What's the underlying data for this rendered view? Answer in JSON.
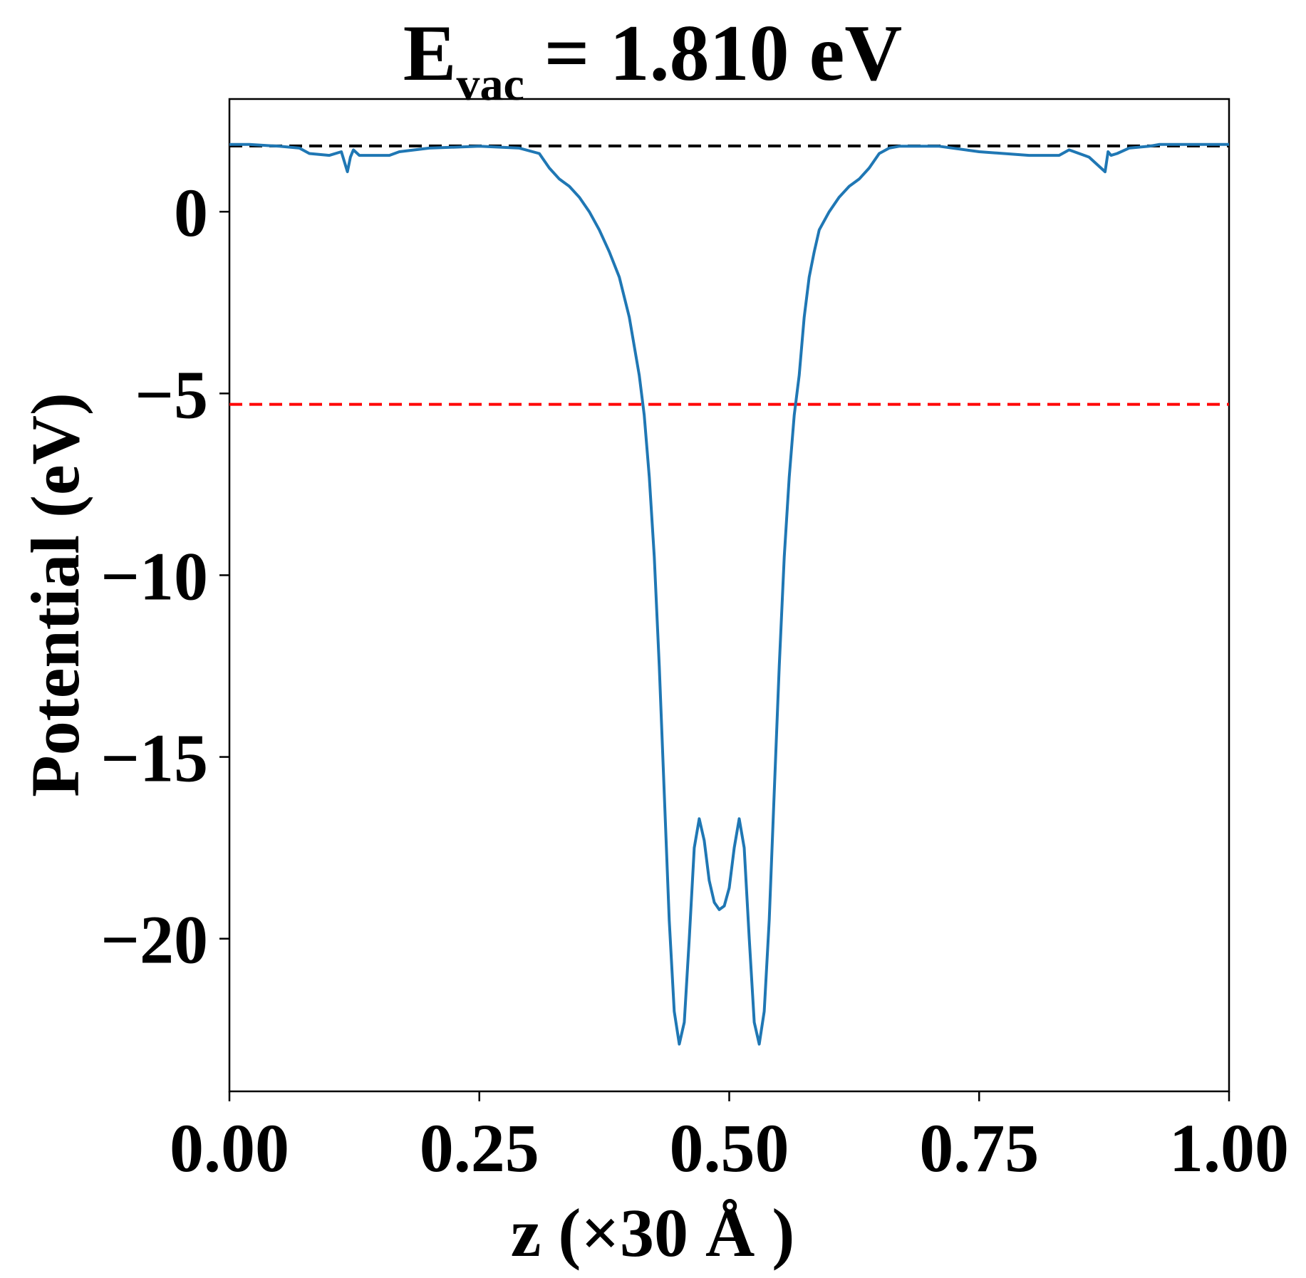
{
  "chart_data": {
    "type": "line",
    "title": {
      "prefix": "E",
      "subscript": "vac",
      "suffix": " = 1.810 eV"
    },
    "xlabel": "z (×30 Å )",
    "ylabel": "Potential (eV)",
    "xlim": [
      0,
      1
    ],
    "ylim": [
      -24.2,
      3.1
    ],
    "xticks": [
      0,
      0.25,
      0.5,
      0.75,
      1.0
    ],
    "xtick_labels": [
      "0.00",
      "0.25",
      "0.50",
      "0.75",
      "1.00"
    ],
    "yticks": [
      0,
      -5,
      -10,
      -15,
      -20
    ],
    "ytick_labels": [
      "0",
      "−5",
      "−10",
      "−15",
      "−20"
    ],
    "grid": false,
    "legend": "none",
    "reference_lines": [
      {
        "kind": "vacuum_level",
        "y": 1.81,
        "color": "#000000",
        "style": "dashed"
      },
      {
        "kind": "reference_level",
        "y": -5.3,
        "color": "#ff0000",
        "style": "dashed"
      }
    ],
    "series": [
      {
        "color": "#1f77b4",
        "x": [
          0.0,
          0.02,
          0.05,
          0.07,
          0.08,
          0.1,
          0.112,
          0.118,
          0.121,
          0.124,
          0.13,
          0.14,
          0.16,
          0.17,
          0.2,
          0.25,
          0.29,
          0.31,
          0.32,
          0.33,
          0.34,
          0.35,
          0.36,
          0.37,
          0.38,
          0.39,
          0.4,
          0.41,
          0.415,
          0.42,
          0.425,
          0.43,
          0.435,
          0.44,
          0.445,
          0.45,
          0.455,
          0.46,
          0.465,
          0.47,
          0.475,
          0.48,
          0.485,
          0.49,
          0.495,
          0.5,
          0.505,
          0.51,
          0.515,
          0.52,
          0.525,
          0.53,
          0.535,
          0.54,
          0.545,
          0.55,
          0.555,
          0.56,
          0.565,
          0.57,
          0.575,
          0.58,
          0.585,
          0.59,
          0.6,
          0.61,
          0.62,
          0.63,
          0.64,
          0.65,
          0.66,
          0.67,
          0.68,
          0.69,
          0.71,
          0.75,
          0.8,
          0.83,
          0.84,
          0.86,
          0.876,
          0.879,
          0.882,
          0.888,
          0.9,
          0.92,
          0.93,
          0.95,
          0.98,
          1.0
        ],
        "y": [
          1.85,
          1.85,
          1.8,
          1.75,
          1.6,
          1.55,
          1.65,
          1.1,
          1.5,
          1.7,
          1.55,
          1.55,
          1.55,
          1.65,
          1.75,
          1.8,
          1.75,
          1.6,
          1.2,
          0.9,
          0.7,
          0.4,
          0.0,
          -0.5,
          -1.1,
          -1.8,
          -2.9,
          -4.5,
          -5.6,
          -7.3,
          -9.5,
          -12.5,
          -16.0,
          -19.5,
          -22.0,
          -22.9,
          -22.3,
          -20.0,
          -17.5,
          -16.7,
          -17.3,
          -18.4,
          -19.0,
          -19.2,
          -19.1,
          -18.6,
          -17.5,
          -16.7,
          -17.5,
          -20.0,
          -22.3,
          -22.9,
          -22.0,
          -19.5,
          -16.0,
          -12.5,
          -9.5,
          -7.3,
          -5.6,
          -4.5,
          -2.9,
          -1.8,
          -1.1,
          -0.5,
          0.0,
          0.4,
          0.7,
          0.9,
          1.2,
          1.6,
          1.75,
          1.8,
          1.8,
          1.8,
          1.8,
          1.65,
          1.55,
          1.55,
          1.7,
          1.5,
          1.1,
          1.65,
          1.55,
          1.6,
          1.75,
          1.8,
          1.85,
          1.85,
          1.85,
          1.85
        ]
      }
    ]
  }
}
